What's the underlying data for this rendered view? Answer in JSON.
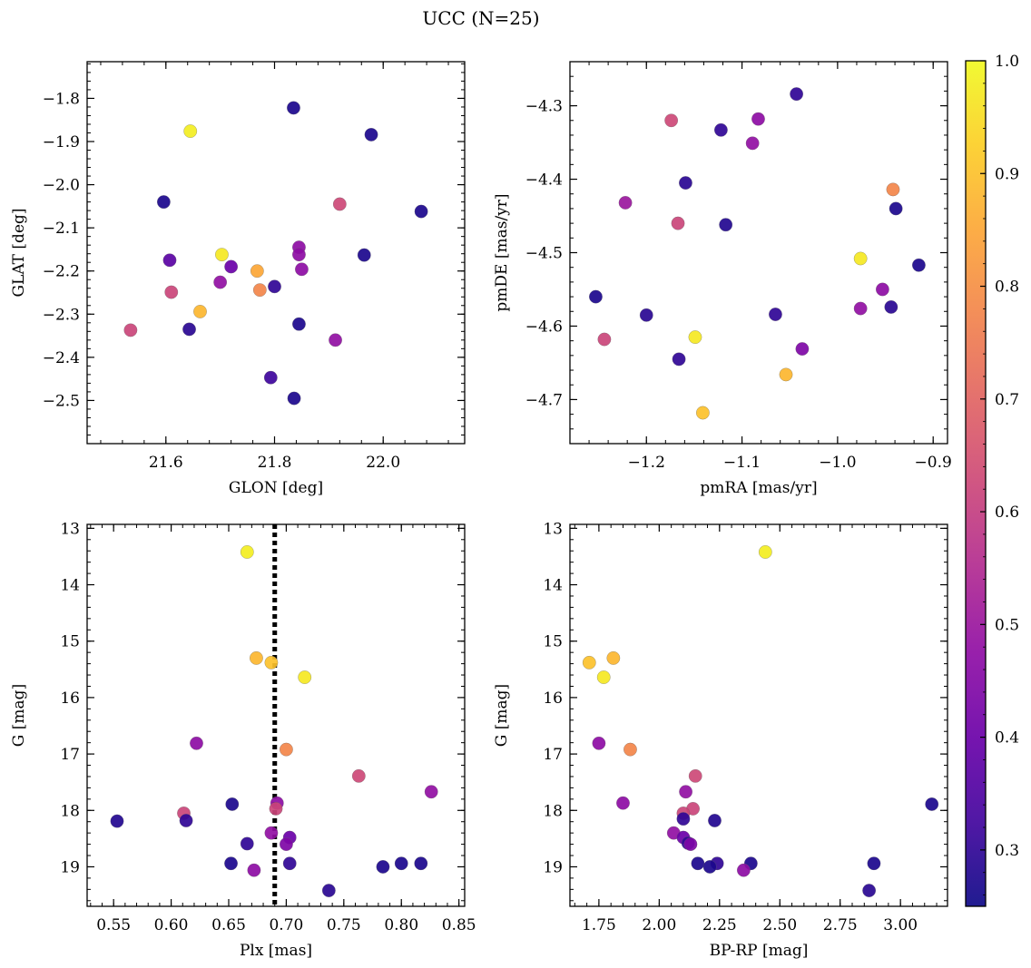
{
  "figure": {
    "title": "UCC (N=25)"
  },
  "colorbar": {
    "ticks": [
      0.3,
      0.4,
      0.5,
      0.6,
      0.7,
      0.8,
      0.9,
      1.0
    ],
    "tick_labels": [
      "0.3",
      "0.4",
      "0.5",
      "0.6",
      "0.7",
      "0.8",
      "0.9",
      "1.0"
    ],
    "range": [
      0.25,
      1.0
    ],
    "colormap": "plasma"
  },
  "chart_data": [
    {
      "type": "scatter",
      "xlabel": "GLON [deg]",
      "ylabel": "GLAT [deg]",
      "xlim": [
        21.455,
        22.15
      ],
      "ylim": [
        -2.6,
        -1.715
      ],
      "xticks": [
        21.6,
        21.8,
        22.0
      ],
      "xtick_labels": [
        "21.6",
        "21.8",
        "22.0"
      ],
      "yticks": [
        -1.8,
        -1.9,
        -2.0,
        -2.1,
        -2.2,
        -2.3,
        -2.4,
        -2.5
      ],
      "ytick_labels": [
        "−1.8",
        "−1.9",
        "−2.0",
        "−2.1",
        "−2.2",
        "−2.3",
        "−2.4",
        "−2.5"
      ],
      "points": [
        {
          "x": 21.835,
          "y": -1.822,
          "c": 0.27
        },
        {
          "x": 21.645,
          "y": -1.876,
          "c": 0.98
        },
        {
          "x": 21.978,
          "y": -1.884,
          "c": 0.27
        },
        {
          "x": 21.596,
          "y": -2.04,
          "c": 0.27
        },
        {
          "x": 21.92,
          "y": -2.045,
          "c": 0.63
        },
        {
          "x": 22.07,
          "y": -2.062,
          "c": 0.27
        },
        {
          "x": 21.845,
          "y": -2.145,
          "c": 0.47
        },
        {
          "x": 21.845,
          "y": -2.162,
          "c": 0.47
        },
        {
          "x": 21.703,
          "y": -2.162,
          "c": 0.97
        },
        {
          "x": 21.965,
          "y": -2.163,
          "c": 0.27
        },
        {
          "x": 21.607,
          "y": -2.175,
          "c": 0.37
        },
        {
          "x": 21.72,
          "y": -2.19,
          "c": 0.4
        },
        {
          "x": 21.85,
          "y": -2.196,
          "c": 0.47
        },
        {
          "x": 21.768,
          "y": -2.2,
          "c": 0.85
        },
        {
          "x": 21.7,
          "y": -2.226,
          "c": 0.48
        },
        {
          "x": 21.8,
          "y": -2.236,
          "c": 0.3
        },
        {
          "x": 21.773,
          "y": -2.244,
          "c": 0.78
        },
        {
          "x": 21.61,
          "y": -2.249,
          "c": 0.62
        },
        {
          "x": 21.663,
          "y": -2.294,
          "c": 0.88
        },
        {
          "x": 21.845,
          "y": -2.323,
          "c": 0.27
        },
        {
          "x": 21.643,
          "y": -2.335,
          "c": 0.29
        },
        {
          "x": 21.535,
          "y": -2.337,
          "c": 0.62
        },
        {
          "x": 21.912,
          "y": -2.36,
          "c": 0.48
        },
        {
          "x": 21.793,
          "y": -2.447,
          "c": 0.32
        },
        {
          "x": 21.836,
          "y": -2.495,
          "c": 0.27
        }
      ]
    },
    {
      "type": "scatter",
      "xlabel": "pmRA [mas/yr]",
      "ylabel": "pmDE [mas/yr]",
      "xlim": [
        -1.28,
        -0.885
      ],
      "ylim": [
        -4.76,
        -4.24
      ],
      "xticks": [
        -1.2,
        -1.1,
        -1.0,
        -0.9
      ],
      "xtick_labels": [
        "−1.2",
        "−1.1",
        "−1.0",
        "−0.9"
      ],
      "yticks": [
        -4.3,
        -4.4,
        -4.5,
        -4.6,
        -4.7
      ],
      "ytick_labels": [
        "−4.3",
        "−4.4",
        "−4.5",
        "−4.6",
        "−4.7"
      ],
      "points": [
        {
          "x": -1.043,
          "y": -4.284,
          "c": 0.3
        },
        {
          "x": -1.174,
          "y": -4.32,
          "c": 0.63
        },
        {
          "x": -1.083,
          "y": -4.318,
          "c": 0.47
        },
        {
          "x": -1.122,
          "y": -4.333,
          "c": 0.3
        },
        {
          "x": -1.089,
          "y": -4.351,
          "c": 0.48
        },
        {
          "x": -1.159,
          "y": -4.405,
          "c": 0.29
        },
        {
          "x": -0.942,
          "y": -4.414,
          "c": 0.78
        },
        {
          "x": -1.222,
          "y": -4.432,
          "c": 0.5
        },
        {
          "x": -0.939,
          "y": -4.44,
          "c": 0.27
        },
        {
          "x": -1.167,
          "y": -4.46,
          "c": 0.62
        },
        {
          "x": -1.117,
          "y": -4.462,
          "c": 0.28
        },
        {
          "x": -0.976,
          "y": -4.508,
          "c": 0.97
        },
        {
          "x": -0.915,
          "y": -4.517,
          "c": 0.27
        },
        {
          "x": -0.953,
          "y": -4.55,
          "c": 0.47
        },
        {
          "x": -1.253,
          "y": -4.56,
          "c": 0.27
        },
        {
          "x": -0.976,
          "y": -4.576,
          "c": 0.48
        },
        {
          "x": -0.944,
          "y": -4.574,
          "c": 0.29
        },
        {
          "x": -1.2,
          "y": -4.585,
          "c": 0.29
        },
        {
          "x": -1.065,
          "y": -4.584,
          "c": 0.3
        },
        {
          "x": -1.244,
          "y": -4.618,
          "c": 0.62
        },
        {
          "x": -1.149,
          "y": -4.615,
          "c": 0.97
        },
        {
          "x": -1.037,
          "y": -4.631,
          "c": 0.44
        },
        {
          "x": -1.166,
          "y": -4.645,
          "c": 0.3
        },
        {
          "x": -1.054,
          "y": -4.666,
          "c": 0.88
        },
        {
          "x": -1.141,
          "y": -4.718,
          "c": 0.9
        }
      ]
    },
    {
      "type": "scatter",
      "xlabel": "Plx [mas]",
      "ylabel": "G [mag]",
      "xlim": [
        0.527,
        0.855
      ],
      "ylim": [
        19.7,
        12.93
      ],
      "y_inverted": true,
      "vline": 0.69,
      "xticks": [
        0.55,
        0.6,
        0.65,
        0.7,
        0.75,
        0.8,
        0.85
      ],
      "xtick_labels": [
        "0.55",
        "0.60",
        "0.65",
        "0.70",
        "0.75",
        "0.80",
        "0.85"
      ],
      "yticks": [
        13,
        14,
        15,
        16,
        17,
        18,
        19
      ],
      "ytick_labels": [
        "13",
        "14",
        "15",
        "16",
        "17",
        "18",
        "19"
      ],
      "points": [
        {
          "x": 0.666,
          "y": 13.42,
          "c": 0.98
        },
        {
          "x": 0.674,
          "y": 15.3,
          "c": 0.88
        },
        {
          "x": 0.687,
          "y": 15.38,
          "c": 0.9
        },
        {
          "x": 0.716,
          "y": 15.64,
          "c": 0.97
        },
        {
          "x": 0.622,
          "y": 16.81,
          "c": 0.47
        },
        {
          "x": 0.7,
          "y": 16.92,
          "c": 0.78
        },
        {
          "x": 0.763,
          "y": 17.39,
          "c": 0.63
        },
        {
          "x": 0.826,
          "y": 17.67,
          "c": 0.48
        },
        {
          "x": 0.692,
          "y": 17.87,
          "c": 0.47
        },
        {
          "x": 0.653,
          "y": 17.89,
          "c": 0.27
        },
        {
          "x": 0.691,
          "y": 17.97,
          "c": 0.62
        },
        {
          "x": 0.611,
          "y": 18.05,
          "c": 0.62
        },
        {
          "x": 0.553,
          "y": 18.19,
          "c": 0.28
        },
        {
          "x": 0.613,
          "y": 18.18,
          "c": 0.3
        },
        {
          "x": 0.687,
          "y": 18.4,
          "c": 0.48
        },
        {
          "x": 0.703,
          "y": 18.48,
          "c": 0.4
        },
        {
          "x": 0.666,
          "y": 18.59,
          "c": 0.3
        },
        {
          "x": 0.7,
          "y": 18.6,
          "c": 0.44
        },
        {
          "x": 0.652,
          "y": 18.94,
          "c": 0.27
        },
        {
          "x": 0.703,
          "y": 18.94,
          "c": 0.3
        },
        {
          "x": 0.8,
          "y": 18.94,
          "c": 0.27
        },
        {
          "x": 0.817,
          "y": 18.94,
          "c": 0.27
        },
        {
          "x": 0.784,
          "y": 19.0,
          "c": 0.27
        },
        {
          "x": 0.672,
          "y": 19.06,
          "c": 0.47
        },
        {
          "x": 0.737,
          "y": 19.42,
          "c": 0.29
        }
      ]
    },
    {
      "type": "scatter",
      "xlabel": "BP-RP [mag]",
      "ylabel": "G [mag]",
      "xlim": [
        1.63,
        3.195
      ],
      "ylim": [
        19.7,
        12.93
      ],
      "y_inverted": true,
      "xticks": [
        1.75,
        2.0,
        2.25,
        2.5,
        2.75,
        3.0
      ],
      "xtick_labels": [
        "1.75",
        "2.00",
        "2.25",
        "2.50",
        "2.75",
        "3.00"
      ],
      "yticks": [
        13,
        14,
        15,
        16,
        17,
        18,
        19
      ],
      "ytick_labels": [
        "13",
        "14",
        "15",
        "16",
        "17",
        "18",
        "19"
      ],
      "points": [
        {
          "x": 2.44,
          "y": 13.42,
          "c": 0.98
        },
        {
          "x": 1.81,
          "y": 15.3,
          "c": 0.88
        },
        {
          "x": 1.71,
          "y": 15.38,
          "c": 0.9
        },
        {
          "x": 1.77,
          "y": 15.64,
          "c": 0.97
        },
        {
          "x": 1.75,
          "y": 16.81,
          "c": 0.47
        },
        {
          "x": 1.88,
          "y": 16.92,
          "c": 0.78
        },
        {
          "x": 2.15,
          "y": 17.39,
          "c": 0.63
        },
        {
          "x": 2.11,
          "y": 17.67,
          "c": 0.48
        },
        {
          "x": 1.85,
          "y": 17.87,
          "c": 0.47
        },
        {
          "x": 3.13,
          "y": 17.89,
          "c": 0.27
        },
        {
          "x": 2.14,
          "y": 17.97,
          "c": 0.62
        },
        {
          "x": 2.1,
          "y": 18.05,
          "c": 0.62
        },
        {
          "x": 2.1,
          "y": 18.15,
          "c": 0.3
        },
        {
          "x": 2.23,
          "y": 18.18,
          "c": 0.28
        },
        {
          "x": 2.06,
          "y": 18.4,
          "c": 0.48
        },
        {
          "x": 2.1,
          "y": 18.48,
          "c": 0.4
        },
        {
          "x": 2.12,
          "y": 18.58,
          "c": 0.3
        },
        {
          "x": 2.13,
          "y": 18.6,
          "c": 0.44
        },
        {
          "x": 2.16,
          "y": 18.94,
          "c": 0.27
        },
        {
          "x": 2.24,
          "y": 18.94,
          "c": 0.3
        },
        {
          "x": 2.38,
          "y": 18.94,
          "c": 0.27
        },
        {
          "x": 2.89,
          "y": 18.94,
          "c": 0.27
        },
        {
          "x": 2.21,
          "y": 19.0,
          "c": 0.27
        },
        {
          "x": 2.35,
          "y": 19.06,
          "c": 0.47
        },
        {
          "x": 2.87,
          "y": 19.42,
          "c": 0.29
        }
      ]
    }
  ]
}
